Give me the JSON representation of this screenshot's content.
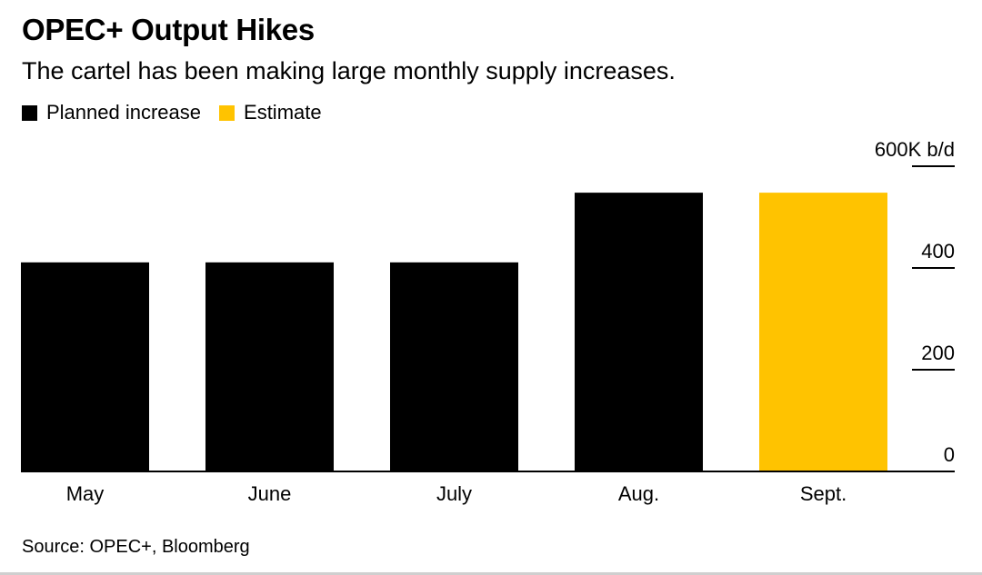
{
  "title": "OPEC+ Output Hikes",
  "subtitle": "The cartel has been making large monthly supply increases.",
  "legend": [
    {
      "label": "Planned increase",
      "color": "#000000"
    },
    {
      "label": "Estimate",
      "color": "#FFC300"
    }
  ],
  "source": "Source: OPEC+, Bloomberg",
  "chart_data": {
    "type": "bar",
    "categories": [
      "May",
      "June",
      "July",
      "Aug.",
      "Sept."
    ],
    "values": [
      411,
      411,
      411,
      548,
      548
    ],
    "bar_series": [
      "Planned increase",
      "Planned increase",
      "Planned increase",
      "Planned increase",
      "Estimate"
    ],
    "colors": [
      "#000000",
      "#000000",
      "#000000",
      "#000000",
      "#FFC300"
    ],
    "ylim": [
      0,
      600
    ],
    "yticks": [
      0,
      200,
      400,
      600
    ],
    "ytick_labels": [
      "0",
      "200",
      "400",
      "600K b/d"
    ],
    "y_axis_position": "right",
    "grid": false
  }
}
